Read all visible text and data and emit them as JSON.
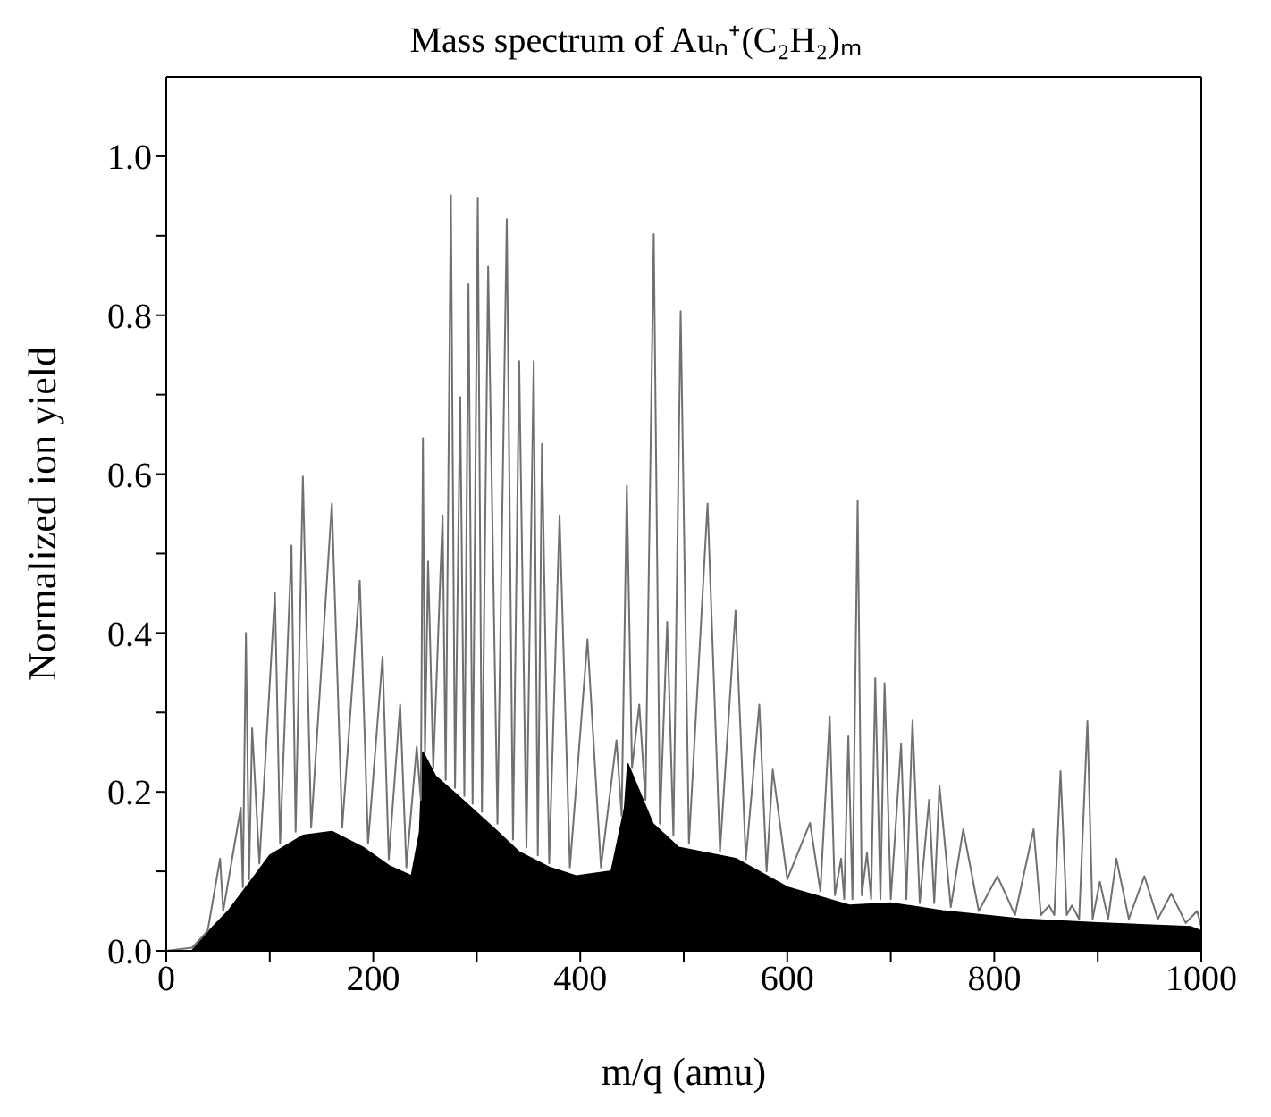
{
  "chart_data": {
    "type": "line",
    "title": "Mass spectrum of Auₙ⁺(C₂H₂)ₘ",
    "xlabel": "m/q (amu)",
    "ylabel": "Normalized ion yield",
    "xlim": [
      0,
      1000
    ],
    "ylim": [
      0,
      1.1
    ],
    "xticks": [
      0,
      {
        "value": 100,
        "label": null
      },
      200,
      {
        "value": 300,
        "label": null
      },
      400,
      {
        "value": 500,
        "label": null
      },
      600,
      {
        "value": 700,
        "label": null
      },
      800,
      {
        "value": 900,
        "label": null
      },
      1000
    ],
    "yticks": [
      {
        "value": 0,
        "label": "0.0"
      },
      {
        "value": 0.1,
        "label": null
      },
      0.2,
      {
        "value": 0.3,
        "label": null
      },
      0.4,
      {
        "value": 0.5,
        "label": null
      },
      0.6,
      {
        "value": 0.7,
        "label": null
      },
      0.8,
      {
        "value": 0.9,
        "label": null
      },
      {
        "value": 1,
        "label": "1.0"
      }
    ],
    "grid": false,
    "legend": false,
    "series": [
      {
        "color": "#707070",
        "x": [
          0,
          25,
          40,
          52,
          55,
          72,
          74,
          77,
          80,
          83,
          90,
          105,
          110,
          121,
          125,
          132,
          140,
          160,
          170,
          187,
          195,
          209,
          215,
          226,
          232,
          242,
          246,
          248,
          250,
          253,
          258,
          267,
          270,
          275,
          279,
          284,
          288,
          292,
          296,
          301,
          305,
          311,
          320,
          329,
          335,
          341,
          348,
          355,
          359,
          363,
          370,
          380,
          390,
          407,
          420,
          435,
          440,
          445,
          450,
          457,
          463,
          471,
          477,
          484,
          490,
          497,
          505,
          523,
          535,
          550,
          560,
          573,
          580,
          586,
          600,
          622,
          632,
          641,
          646,
          652,
          655,
          659,
          663,
          668,
          672,
          677,
          681,
          685,
          690,
          694,
          700,
          710,
          715,
          721,
          728,
          737,
          742,
          747,
          758,
          770,
          785,
          803,
          820,
          838,
          845,
          853,
          858,
          864,
          870,
          875,
          882,
          890,
          895,
          902,
          910,
          918,
          930,
          945,
          958,
          971,
          985,
          996,
          1000
        ],
        "values": [
          0,
          0.004,
          0.025,
          0.116,
          0.05,
          0.18,
          0.08,
          0.4,
          0.09,
          0.28,
          0.11,
          0.45,
          0.135,
          0.51,
          0.15,
          0.597,
          0.155,
          0.563,
          0.155,
          0.466,
          0.135,
          0.37,
          0.115,
          0.31,
          0.105,
          0.257,
          0.19,
          0.645,
          0.25,
          0.49,
          0.23,
          0.548,
          0.215,
          0.951,
          0.205,
          0.697,
          0.195,
          0.839,
          0.185,
          0.947,
          0.175,
          0.861,
          0.16,
          0.921,
          0.14,
          0.742,
          0.13,
          0.742,
          0.12,
          0.638,
          0.11,
          0.548,
          0.105,
          0.392,
          0.105,
          0.265,
          0.17,
          0.585,
          0.23,
          0.31,
          0.19,
          0.902,
          0.16,
          0.414,
          0.145,
          0.805,
          0.135,
          0.563,
          0.125,
          0.428,
          0.115,
          0.31,
          0.1,
          0.228,
          0.09,
          0.161,
          0.075,
          0.295,
          0.07,
          0.116,
          0.065,
          0.27,
          0.065,
          0.567,
          0.07,
          0.123,
          0.065,
          0.343,
          0.065,
          0.337,
          0.065,
          0.26,
          0.065,
          0.29,
          0.06,
          0.19,
          0.06,
          0.208,
          0.055,
          0.153,
          0.05,
          0.094,
          0.045,
          0.153,
          0.045,
          0.057,
          0.045,
          0.226,
          0.045,
          0.057,
          0.04,
          0.289,
          0.04,
          0.087,
          0.04,
          0.116,
          0.04,
          0.094,
          0.04,
          0.072,
          0.035,
          0.05,
          0.03
        ]
      },
      {
        "type": "area",
        "color": "#000000",
        "x": [
          0,
          25,
          45,
          60,
          83,
          100,
          132,
          160,
          190,
          215,
          237,
          245,
          248,
          260,
          286,
          320,
          341,
          370,
          396,
          430,
          443,
          446,
          470,
          495,
          550,
          600,
          660,
          700,
          750,
          825,
          900,
          990,
          1000
        ],
        "values": [
          0,
          0,
          0.03,
          0.05,
          0.09,
          0.12,
          0.145,
          0.15,
          0.13,
          0.107,
          0.094,
          0.15,
          0.25,
          0.22,
          0.19,
          0.15,
          0.124,
          0.105,
          0.094,
          0.1,
          0.18,
          0.235,
          0.16,
          0.13,
          0.116,
          0.08,
          0.057,
          0.06,
          0.05,
          0.04,
          0.035,
          0.03,
          0.025
        ]
      }
    ]
  }
}
